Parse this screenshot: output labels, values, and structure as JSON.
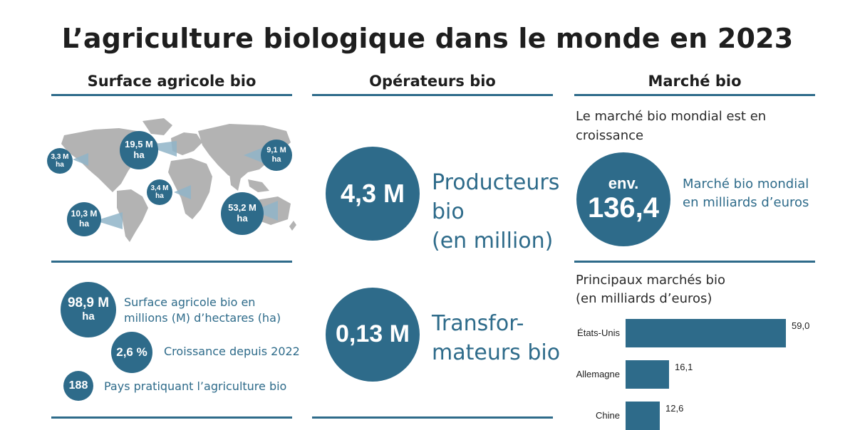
{
  "title": "L’agriculture biologique dans le monde en 2023",
  "columns": {
    "surface": {
      "heading": "Surface agricole bio"
    },
    "operateurs": {
      "heading": "Opérateurs bio"
    },
    "marche": {
      "heading": "Marché bio"
    }
  },
  "map": {
    "bubbles": [
      {
        "value": "3,3 M",
        "unit": "ha"
      },
      {
        "value": "19,5 M",
        "unit": "ha"
      },
      {
        "value": "9,1 M",
        "unit": "ha"
      },
      {
        "value": "3,4 M",
        "unit": "ha"
      },
      {
        "value": "10,3 M",
        "unit": "ha"
      },
      {
        "value": "53,2 M",
        "unit": "ha"
      }
    ]
  },
  "surface_stats": {
    "total_value": "98,9 M",
    "total_unit": "ha",
    "total_desc_line1": "Surface agricole bio en",
    "total_desc_line2": "millions (M) d’hectares (ha)",
    "growth_value": "2,6 %",
    "growth_desc": "Croissance depuis 2022",
    "countries_value": "188",
    "countries_desc": "Pays pratiquant l’agriculture bio"
  },
  "operators": {
    "producers_value": "4,3 M",
    "producers_line1": "Producteurs",
    "producers_line2": "bio",
    "producers_line3": "(en million)",
    "processors_value": "0,13 M",
    "processors_line1": "Transfor-",
    "processors_line2": "mateurs bio"
  },
  "market": {
    "intro_line1": "Le marché bio mondial est en",
    "intro_line2": "croissance",
    "circle_top": "env.",
    "circle_value": "136,4",
    "desc_line1": "Marché bio mondial",
    "desc_line2": "en milliards d’euros",
    "main_markets_line1": "Principaux marchés bio",
    "main_markets_line2": "(en milliards d’euros)"
  },
  "chart_data": {
    "type": "bar",
    "orientation": "horizontal",
    "title": "Principaux marchés bio (en milliards d’euros)",
    "categories": [
      "États-Unis",
      "Allemagne",
      "Chine"
    ],
    "values": [
      59.0,
      16.1,
      12.6
    ],
    "value_labels": [
      "59,0",
      "16,1",
      "12,6"
    ],
    "xlim": [
      0,
      59.0
    ],
    "grid": false
  },
  "colors": {
    "accent": "#2e6b8a",
    "map_gray": "#b3b3b3",
    "text": "#1e1e1e"
  }
}
